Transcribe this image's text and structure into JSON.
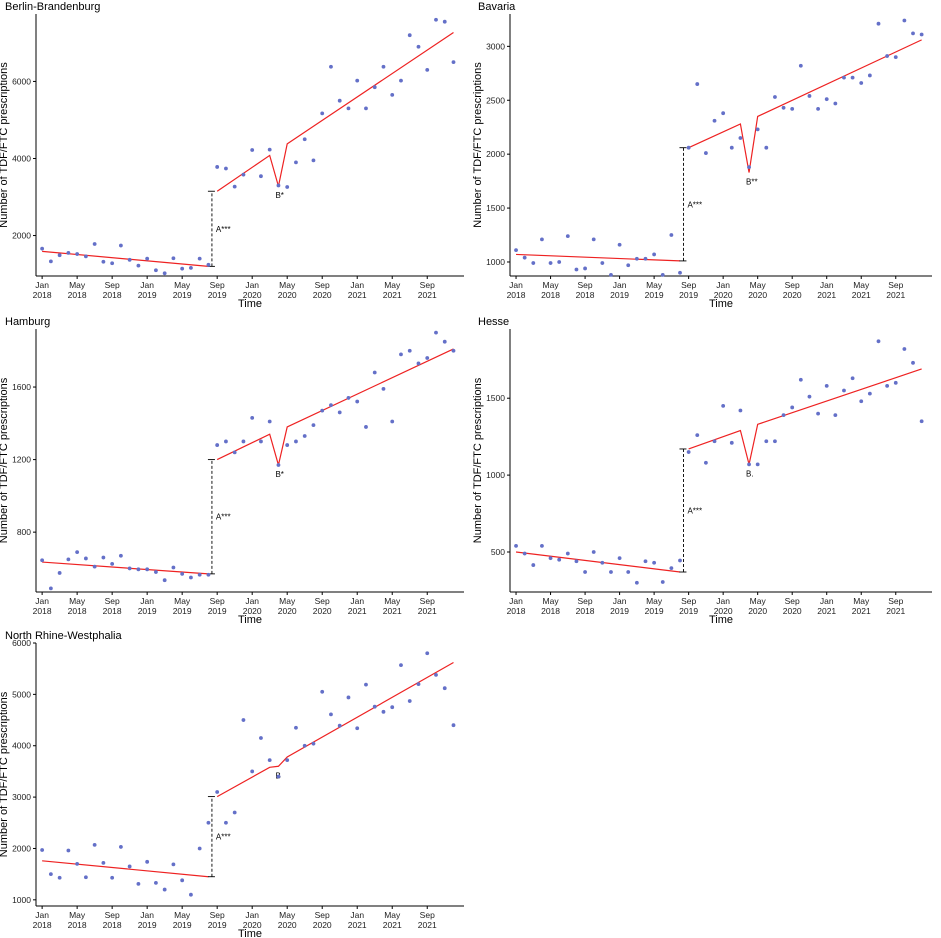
{
  "chart_data": [
    {
      "type": "scatter",
      "title": "Berlin-Brandenburg",
      "xlabel": "Time",
      "ylabel": "Number of TDF/FTC prescriptions",
      "xlim": [
        0,
        48
      ],
      "ylim": [
        950,
        7750
      ],
      "yticks": [
        2000,
        4000,
        6000
      ],
      "xticks": [
        {
          "x": 0,
          "month": "Jan",
          "year": "2018"
        },
        {
          "x": 4,
          "month": "May",
          "year": "2018"
        },
        {
          "x": 8,
          "month": "Sep",
          "year": "2018"
        },
        {
          "x": 12,
          "month": "Jan",
          "year": "2019"
        },
        {
          "x": 16,
          "month": "May",
          "year": "2019"
        },
        {
          "x": 20,
          "month": "Sep",
          "year": "2019"
        },
        {
          "x": 24,
          "month": "Jan",
          "year": "2020"
        },
        {
          "x": 28,
          "month": "May",
          "year": "2020"
        },
        {
          "x": 32,
          "month": "Sep",
          "year": "2020"
        },
        {
          "x": 36,
          "month": "Jan",
          "year": "2021"
        },
        {
          "x": 40,
          "month": "May",
          "year": "2021"
        },
        {
          "x": 44,
          "month": "Sep",
          "year": "2021"
        }
      ],
      "points": [
        1660,
        1330,
        1490,
        1550,
        1520,
        1460,
        1780,
        1320,
        1280,
        1740,
        1370,
        1220,
        1400,
        1100,
        1020,
        1410,
        1140,
        1160,
        1400,
        1240,
        3780,
        3740,
        3270,
        3580,
        4220,
        3540,
        4230,
        3300,
        3260,
        3900,
        4500,
        3950,
        5170,
        6380,
        5500,
        5300,
        6020,
        5300,
        5850,
        6380,
        5650,
        6020,
        7200,
        6900,
        6300,
        7600,
        7550,
        6500
      ],
      "fit_pre": {
        "start": 1590,
        "end": 1200
      },
      "fit_post": {
        "start": 3150,
        "peak": 4080,
        "dip": 3280,
        "resume": 4380,
        "end": 7270
      },
      "annotations": {
        "a_label": "A***",
        "b_label": "B*"
      }
    },
    {
      "type": "scatter",
      "title": "Bavaria",
      "xlabel": "Time",
      "ylabel": "Number of TDF/FTC prescriptions",
      "xlim": [
        0,
        48
      ],
      "ylim": [
        870,
        3300
      ],
      "yticks": [
        1000,
        1500,
        2000,
        2500,
        3000
      ],
      "xticks": [
        {
          "x": 0,
          "month": "Jan",
          "year": "2018"
        },
        {
          "x": 4,
          "month": "May",
          "year": "2018"
        },
        {
          "x": 8,
          "month": "Sep",
          "year": "2018"
        },
        {
          "x": 12,
          "month": "Jan",
          "year": "2019"
        },
        {
          "x": 16,
          "month": "May",
          "year": "2019"
        },
        {
          "x": 20,
          "month": "Sep",
          "year": "2019"
        },
        {
          "x": 24,
          "month": "Jan",
          "year": "2020"
        },
        {
          "x": 28,
          "month": "May",
          "year": "2020"
        },
        {
          "x": 32,
          "month": "Sep",
          "year": "2020"
        },
        {
          "x": 36,
          "month": "Jan",
          "year": "2021"
        },
        {
          "x": 40,
          "month": "May",
          "year": "2021"
        },
        {
          "x": 44,
          "month": "Sep",
          "year": "2021"
        }
      ],
      "points": [
        1110,
        1040,
        990,
        1210,
        990,
        1000,
        1240,
        930,
        940,
        1210,
        990,
        880,
        1160,
        970,
        1030,
        1030,
        1070,
        880,
        1250,
        900,
        2060,
        2650,
        2010,
        2310,
        2380,
        2060,
        2150,
        1880,
        2230,
        2060,
        2530,
        2430,
        2420,
        2820,
        2540,
        2420,
        2510,
        2470,
        2710,
        2710,
        2660,
        2730,
        3210,
        2910,
        2900,
        3240,
        3120,
        3110
      ],
      "fit_pre": {
        "start": 1070,
        "end": 1010
      },
      "fit_post": {
        "start": 2060,
        "peak": 2280,
        "dip": 1830,
        "resume": 2350,
        "end": 3060
      },
      "annotations": {
        "a_label": "A***",
        "b_label": "B**"
      }
    },
    {
      "type": "scatter",
      "title": "Hamburg",
      "xlabel": "Time",
      "ylabel": "Number of TDF/FTC prescriptions",
      "xlim": [
        0,
        48
      ],
      "ylim": [
        470,
        1920
      ],
      "yticks": [
        800,
        1200,
        1600
      ],
      "xticks": [
        {
          "x": 0,
          "month": "Jan",
          "year": "2018"
        },
        {
          "x": 4,
          "month": "May",
          "year": "2018"
        },
        {
          "x": 8,
          "month": "Sep",
          "year": "2018"
        },
        {
          "x": 12,
          "month": "Jan",
          "year": "2019"
        },
        {
          "x": 16,
          "month": "May",
          "year": "2019"
        },
        {
          "x": 20,
          "month": "Sep",
          "year": "2019"
        },
        {
          "x": 24,
          "month": "Jan",
          "year": "2020"
        },
        {
          "x": 28,
          "month": "May",
          "year": "2020"
        },
        {
          "x": 32,
          "month": "Sep",
          "year": "2020"
        },
        {
          "x": 36,
          "month": "Jan",
          "year": "2021"
        },
        {
          "x": 40,
          "month": "May",
          "year": "2021"
        },
        {
          "x": 44,
          "month": "Sep",
          "year": "2021"
        }
      ],
      "points": [
        645,
        490,
        575,
        650,
        690,
        655,
        610,
        660,
        625,
        670,
        600,
        595,
        595,
        580,
        535,
        605,
        570,
        550,
        565,
        565,
        1280,
        1300,
        1240,
        1300,
        1430,
        1300,
        1410,
        1170,
        1280,
        1300,
        1330,
        1390,
        1470,
        1500,
        1460,
        1540,
        1520,
        1380,
        1680,
        1590,
        1410,
        1780,
        1800,
        1730,
        1760,
        1900,
        1850,
        1800
      ],
      "fit_pre": {
        "start": 635,
        "end": 570
      },
      "fit_post": {
        "start": 1200,
        "peak": 1340,
        "dip": 1170,
        "resume": 1380,
        "end": 1810
      },
      "annotations": {
        "a_label": "A***",
        "b_label": "B*"
      }
    },
    {
      "type": "scatter",
      "title": "Hesse",
      "xlabel": "Time",
      "ylabel": "Number of TDF/FTC prescriptions",
      "xlim": [
        0,
        48
      ],
      "ylim": [
        240,
        1950
      ],
      "yticks": [
        500,
        1000,
        1500
      ],
      "xticks": [
        {
          "x": 0,
          "month": "Jan",
          "year": "2018"
        },
        {
          "x": 4,
          "month": "May",
          "year": "2018"
        },
        {
          "x": 8,
          "month": "Sep",
          "year": "2018"
        },
        {
          "x": 12,
          "month": "Jan",
          "year": "2019"
        },
        {
          "x": 16,
          "month": "May",
          "year": "2019"
        },
        {
          "x": 20,
          "month": "Sep",
          "year": "2019"
        },
        {
          "x": 24,
          "month": "Jan",
          "year": "2020"
        },
        {
          "x": 28,
          "month": "May",
          "year": "2020"
        },
        {
          "x": 32,
          "month": "Sep",
          "year": "2020"
        },
        {
          "x": 36,
          "month": "Jan",
          "year": "2021"
        },
        {
          "x": 40,
          "month": "May",
          "year": "2021"
        },
        {
          "x": 44,
          "month": "Sep",
          "year": "2021"
        }
      ],
      "points": [
        540,
        490,
        415,
        540,
        460,
        450,
        490,
        440,
        370,
        500,
        430,
        370,
        460,
        370,
        300,
        440,
        430,
        305,
        395,
        445,
        1150,
        1260,
        1080,
        1220,
        1450,
        1210,
        1420,
        1070,
        1070,
        1220,
        1220,
        1390,
        1440,
        1620,
        1510,
        1400,
        1580,
        1390,
        1550,
        1630,
        1480,
        1530,
        1870,
        1580,
        1600,
        1820,
        1730,
        1350
      ],
      "fit_pre": {
        "start": 500,
        "end": 370
      },
      "fit_post": {
        "start": 1170,
        "peak": 1290,
        "dip": 1070,
        "resume": 1330,
        "end": 1690
      },
      "annotations": {
        "a_label": "A***",
        "b_label": "B."
      }
    },
    {
      "type": "scatter",
      "title": "North Rhine-Westphalia",
      "xlabel": "Time",
      "ylabel": "Number of TDF/FTC prescriptions",
      "xlim": [
        0,
        48
      ],
      "ylim": [
        880,
        6000
      ],
      "yticks": [
        1000,
        2000,
        3000,
        4000,
        5000,
        6000
      ],
      "xticks": [
        {
          "x": 0,
          "month": "Jan",
          "year": "2018"
        },
        {
          "x": 4,
          "month": "May",
          "year": "2018"
        },
        {
          "x": 8,
          "month": "Sep",
          "year": "2018"
        },
        {
          "x": 12,
          "month": "Jan",
          "year": "2019"
        },
        {
          "x": 16,
          "month": "May",
          "year": "2019"
        },
        {
          "x": 20,
          "month": "Sep",
          "year": "2019"
        },
        {
          "x": 24,
          "month": "Jan",
          "year": "2020"
        },
        {
          "x": 28,
          "month": "May",
          "year": "2020"
        },
        {
          "x": 32,
          "month": "Sep",
          "year": "2020"
        },
        {
          "x": 36,
          "month": "Jan",
          "year": "2021"
        },
        {
          "x": 40,
          "month": "May",
          "year": "2021"
        },
        {
          "x": 44,
          "month": "Sep",
          "year": "2021"
        }
      ],
      "points": [
        1970,
        1500,
        1430,
        1960,
        1700,
        1440,
        2070,
        1720,
        1430,
        2030,
        1650,
        1310,
        1740,
        1330,
        1200,
        1690,
        1380,
        1100,
        2000,
        2500,
        3100,
        2500,
        2700,
        4500,
        3500,
        4150,
        3720,
        3400,
        3720,
        4350,
        4000,
        4040,
        5050,
        4610,
        4390,
        4940,
        4340,
        5190,
        4760,
        4660,
        4750,
        5570,
        4870,
        5200,
        5800,
        5380,
        5120,
        4400
      ],
      "fit_pre": {
        "start": 1760,
        "end": 1450
      },
      "fit_post": {
        "start": 3010,
        "peak": 3580,
        "dip": 3600,
        "resume": 3780,
        "end": 5620
      },
      "annotations": {
        "a_label": "A***",
        "b_label": "B"
      }
    }
  ]
}
